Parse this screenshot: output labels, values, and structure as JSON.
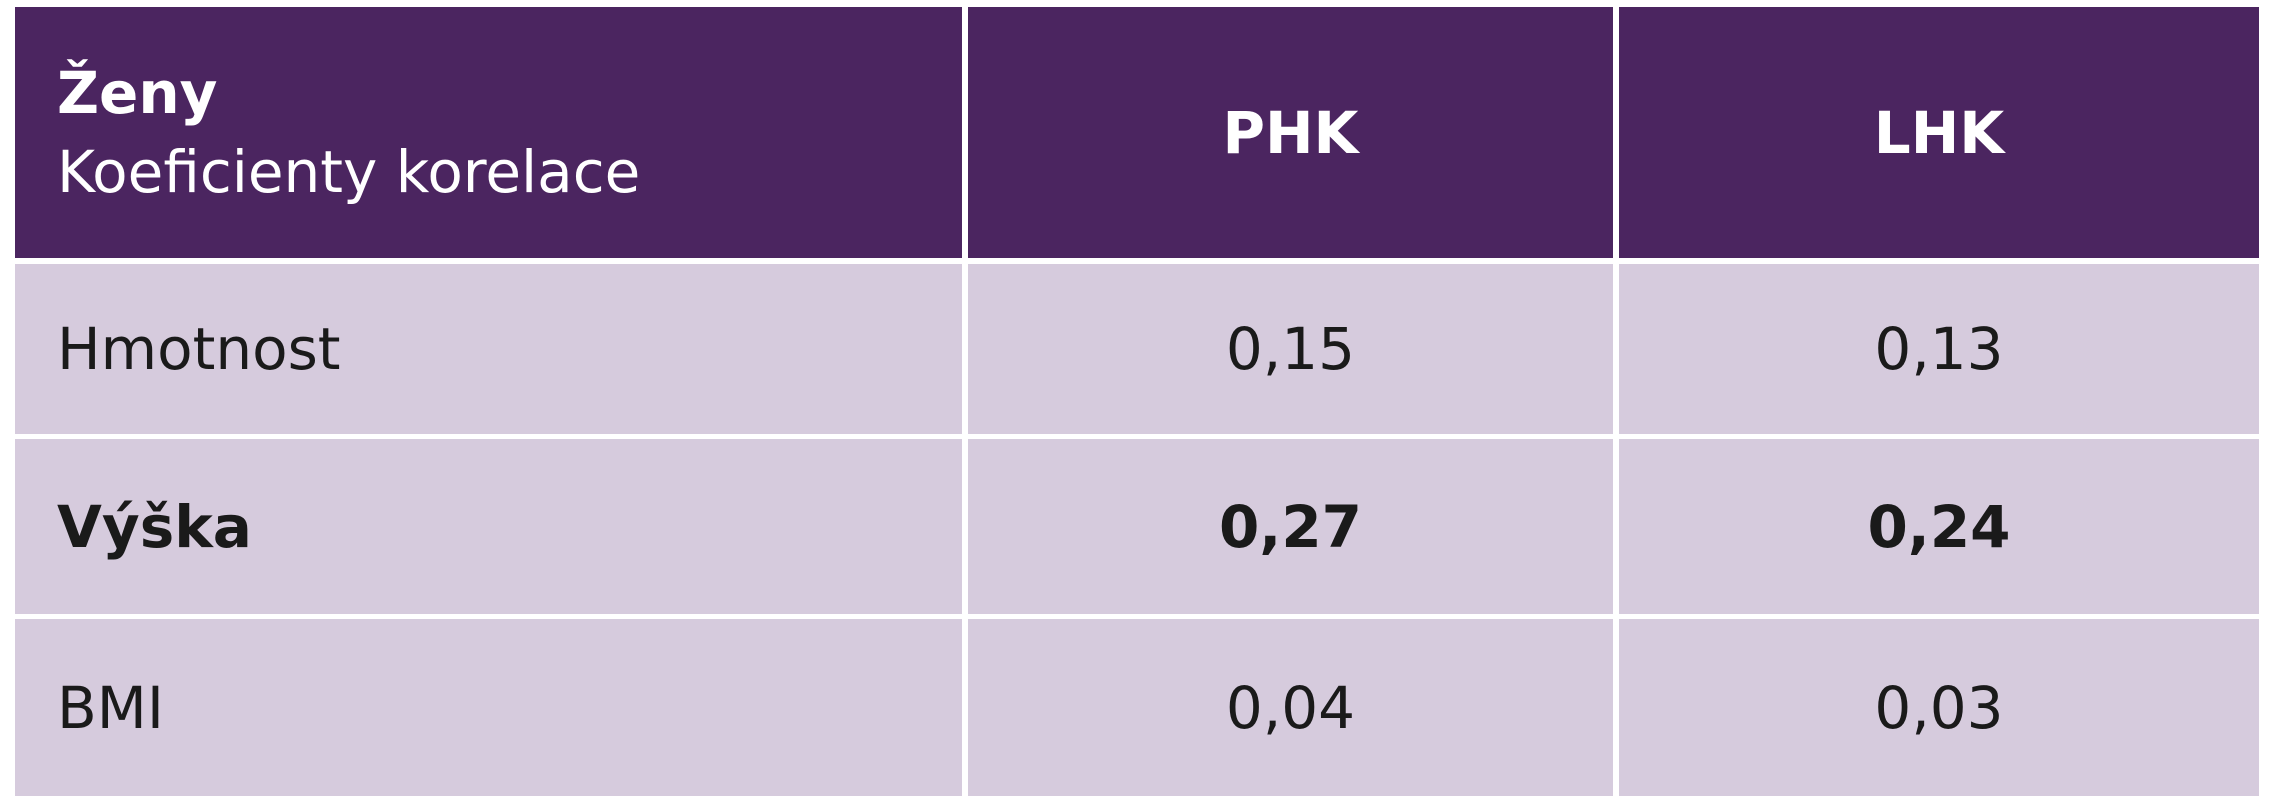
{
  "table": {
    "header": {
      "title": [
        "Ženy",
        "Koeficienty korelace"
      ],
      "columns": [
        "PHK",
        "LHK"
      ]
    },
    "rows": [
      [
        "Hmotnost",
        "0,15",
        "0,13"
      ],
      [
        "Výška",
        "0,27",
        "0,24"
      ],
      [
        "BMI",
        "0,04",
        "0,03"
      ]
    ]
  }
}
